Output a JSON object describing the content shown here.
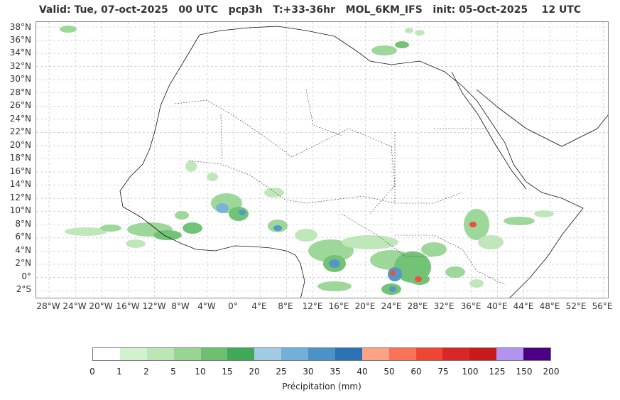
{
  "title": "Valid: Tue, 07-oct-2025   00 UTC   pcp3h   T:+33-36hr   MOL_6KM_IFS   init: 05-Oct-2025    12 UTC",
  "lat_labels": [
    "38°N",
    "36°N",
    "34°N",
    "32°N",
    "30°N",
    "28°N",
    "26°N",
    "24°N",
    "22°N",
    "20°N",
    "18°N",
    "16°N",
    "14°N",
    "12°N",
    "10°N",
    "8°N",
    "6°N",
    "4°N",
    "2°N",
    "0°",
    "2°S"
  ],
  "lon_labels": [
    "28°W",
    "24°W",
    "20°W",
    "16°W",
    "12°W",
    "8°W",
    "4°W",
    "0°",
    "4°E",
    "8°E",
    "12°E",
    "16°E",
    "20°E",
    "24°E",
    "28°E",
    "32°E",
    "36°E",
    "40°E",
    "44°E",
    "48°E",
    "52°E",
    "56°E"
  ],
  "colorbar": {
    "label": "Précipitation (mm)",
    "ticks": [
      "0",
      "1",
      "2",
      "5",
      "10",
      "15",
      "20",
      "25",
      "30",
      "35",
      "40",
      "50",
      "60",
      "75",
      "100",
      "125",
      "150",
      "200"
    ],
    "colors": [
      "#ffffff",
      "#d2f1cf",
      "#bde6b7",
      "#98d594",
      "#6cc070",
      "#3fa957",
      "#a2cbe3",
      "#71b0d8",
      "#4b93c6",
      "#2a72b4",
      "#fca387",
      "#fa7357",
      "#ef4633",
      "#d92626",
      "#c71a1d",
      "#b393f0",
      "#4b0084"
    ]
  },
  "precip_areas": [
    {
      "lon": 8,
      "lat": 8,
      "level": 25
    },
    {
      "lon": 15,
      "lat": 2,
      "level": 35
    },
    {
      "lon": 24,
      "lat": 1,
      "level": 75
    },
    {
      "lon": 28,
      "lat": 0,
      "level": 60
    },
    {
      "lon": 37,
      "lat": 8,
      "level": 75
    },
    {
      "lon": 0,
      "lat": 10,
      "level": 30
    }
  ]
}
